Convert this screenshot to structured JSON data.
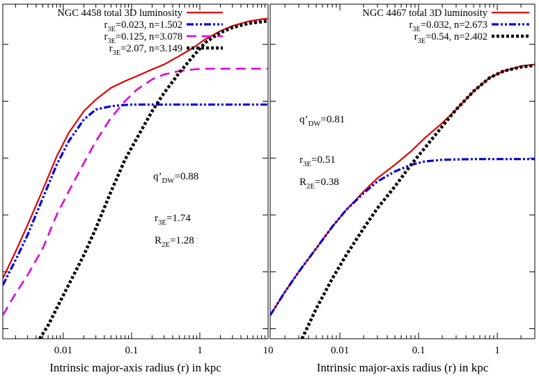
{
  "chart_data": [
    {
      "type": "line",
      "xlabel": "Intrinsic major-axis radius (r) in kpc",
      "x_scale": "log",
      "xlim": [
        0.0013,
        10
      ],
      "x_ticks": [
        {
          "value": 0.01,
          "label": "0.01"
        },
        {
          "value": 0.1,
          "label": "0.1"
        },
        {
          "value": 1,
          "label": "1"
        },
        {
          "value": 10,
          "label": "10"
        }
      ],
      "ylim": [
        0,
        1
      ],
      "grid": false,
      "legend_position": "top-right",
      "series": [
        {
          "name": "NGC 4458 total 3D luminosity",
          "name_parts": [
            "NGC 4458 total 3D luminosity"
          ],
          "color": "#e00000",
          "dash": "solid",
          "x": [
            0.0013,
            0.002,
            0.003,
            0.005,
            0.008,
            0.012,
            0.02,
            0.03,
            0.05,
            0.08,
            0.12,
            0.2,
            0.3,
            0.5,
            0.8,
            1.2,
            2,
            3,
            5,
            8,
            10
          ],
          "y": [
            0.18,
            0.26,
            0.34,
            0.445,
            0.545,
            0.615,
            0.68,
            0.715,
            0.75,
            0.77,
            0.785,
            0.805,
            0.82,
            0.845,
            0.87,
            0.895,
            0.92,
            0.935,
            0.948,
            0.955,
            0.957
          ]
        },
        {
          "name": "r3E=0.023, n=1.502",
          "name_parts": [
            "r",
            "3E",
            "=0.023, n=1.502"
          ],
          "color": "#0000e0",
          "dash": "dashdot",
          "x": [
            0.0013,
            0.002,
            0.003,
            0.005,
            0.008,
            0.012,
            0.02,
            0.03,
            0.05,
            0.07,
            0.1,
            0.2,
            0.5,
            1,
            3,
            10
          ],
          "y": [
            0.16,
            0.235,
            0.31,
            0.42,
            0.52,
            0.59,
            0.655,
            0.685,
            0.695,
            0.698,
            0.7,
            0.7,
            0.7,
            0.7,
            0.7,
            0.7
          ]
        },
        {
          "name": "r3E=0.125, n=3.078",
          "name_parts": [
            "r",
            "3E",
            "=0.125, n=3.078"
          ],
          "color": "#e000e0",
          "dash": "dash",
          "x": [
            0.0013,
            0.002,
            0.003,
            0.005,
            0.008,
            0.012,
            0.02,
            0.03,
            0.05,
            0.08,
            0.12,
            0.2,
            0.3,
            0.5,
            0.8,
            1.2,
            2,
            4,
            10
          ],
          "y": [
            0.07,
            0.135,
            0.19,
            0.27,
            0.37,
            0.44,
            0.525,
            0.59,
            0.66,
            0.71,
            0.745,
            0.775,
            0.79,
            0.8,
            0.805,
            0.807,
            0.807,
            0.807,
            0.807
          ]
        },
        {
          "name": "r3E=2.07, n=3.149",
          "name_parts": [
            "r",
            "3E",
            "=2.07, n=3.149"
          ],
          "color": "#000000",
          "dash": "dot",
          "x": [
            0.0045,
            0.006,
            0.01,
            0.015,
            0.02,
            0.03,
            0.05,
            0.08,
            0.12,
            0.2,
            0.3,
            0.5,
            0.8,
            1.2,
            2,
            3,
            5,
            10
          ],
          "y": [
            0.0,
            0.04,
            0.13,
            0.2,
            0.25,
            0.33,
            0.44,
            0.535,
            0.6,
            0.68,
            0.735,
            0.795,
            0.845,
            0.885,
            0.915,
            0.93,
            0.942,
            0.95
          ]
        }
      ],
      "annotations": [
        {
          "parts": [
            "q’",
            "DW",
            "=0.88"
          ]
        },
        {
          "parts": [
            "r",
            "3E",
            "=1.74"
          ]
        },
        {
          "parts": [
            "R",
            "2E",
            "=1.28"
          ]
        }
      ]
    },
    {
      "type": "line",
      "xlabel": "Intrinsic major-axis radius (r) in kpc",
      "x_scale": "log",
      "xlim": [
        0.0013,
        3
      ],
      "x_ticks": [
        {
          "value": 0.01,
          "label": "0.01"
        },
        {
          "value": 0.1,
          "label": "0.1"
        },
        {
          "value": 1,
          "label": "1"
        }
      ],
      "ylim": [
        0,
        1
      ],
      "grid": false,
      "legend_position": "top-right",
      "series": [
        {
          "name": "NGC 4467 total 3D luminosity",
          "name_parts": [
            "NGC 4467 total 3D luminosity"
          ],
          "color": "#e00000",
          "dash": "solid",
          "x": [
            0.0013,
            0.002,
            0.003,
            0.005,
            0.008,
            0.012,
            0.02,
            0.03,
            0.05,
            0.08,
            0.12,
            0.2,
            0.3,
            0.5,
            0.8,
            1.2,
            2,
            3
          ],
          "y": [
            0.07,
            0.14,
            0.2,
            0.27,
            0.335,
            0.385,
            0.44,
            0.48,
            0.52,
            0.56,
            0.6,
            0.645,
            0.685,
            0.74,
            0.78,
            0.8,
            0.815,
            0.82
          ]
        },
        {
          "name": "r3E=0.032, n=2.673",
          "name_parts": [
            "r",
            "3E",
            "=0.032, n=2.673"
          ],
          "color": "#0000e0",
          "dash": "dashdot",
          "x": [
            0.0013,
            0.002,
            0.003,
            0.005,
            0.008,
            0.012,
            0.02,
            0.03,
            0.05,
            0.08,
            0.12,
            0.2,
            0.5,
            1,
            3
          ],
          "y": [
            0.07,
            0.14,
            0.2,
            0.27,
            0.335,
            0.385,
            0.435,
            0.47,
            0.5,
            0.52,
            0.53,
            0.535,
            0.537,
            0.537,
            0.537
          ]
        },
        {
          "name": "r3E=0.54, n=2.402",
          "name_parts": [
            "r",
            "3E",
            "=0.54, n=2.402"
          ],
          "color": "#000000",
          "dash": "dot",
          "x": [
            0.0033,
            0.005,
            0.008,
            0.012,
            0.02,
            0.03,
            0.05,
            0.08,
            0.12,
            0.2,
            0.3,
            0.5,
            0.8,
            1.2,
            2,
            3
          ],
          "y": [
            0.0,
            0.09,
            0.18,
            0.25,
            0.33,
            0.39,
            0.455,
            0.52,
            0.57,
            0.635,
            0.685,
            0.74,
            0.78,
            0.8,
            0.812,
            0.817
          ]
        }
      ],
      "annotations": [
        {
          "parts": [
            "q’",
            "DW",
            "=0.81"
          ]
        },
        {
          "parts": [
            "r",
            "3E",
            "=0.51"
          ]
        },
        {
          "parts": [
            "R",
            "2E",
            "=0.38"
          ]
        }
      ]
    }
  ]
}
